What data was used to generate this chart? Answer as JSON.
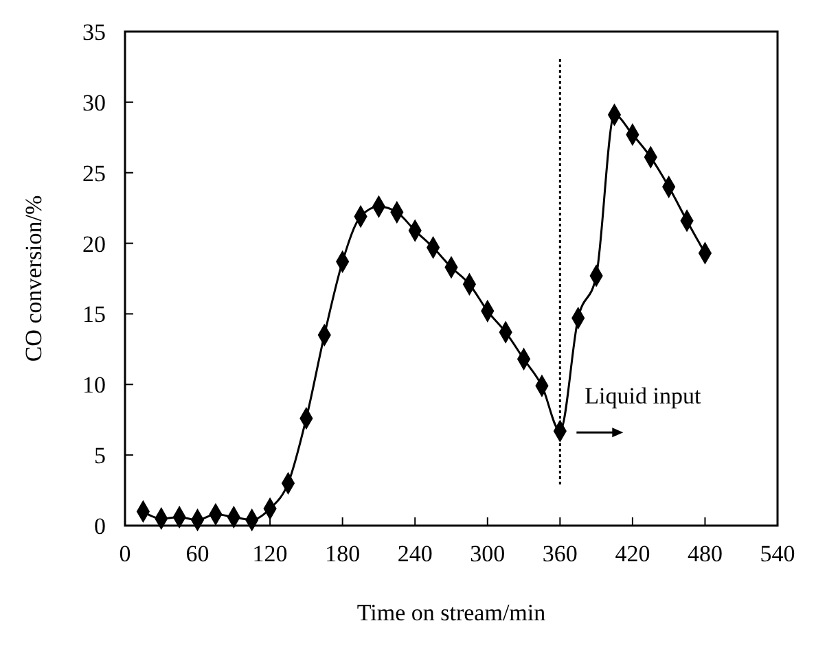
{
  "chart_data": {
    "type": "line",
    "xlabel": "Time on stream/min",
    "ylabel": "CO conversion/%",
    "x": [
      15,
      30,
      45,
      60,
      75,
      90,
      105,
      120,
      135,
      150,
      165,
      180,
      195,
      210,
      225,
      240,
      255,
      270,
      285,
      300,
      315,
      330,
      345,
      360,
      375,
      390,
      405,
      420,
      435,
      450,
      465,
      480
    ],
    "series": [
      {
        "color": "#000000",
        "values": [
          1.0,
          0.5,
          0.6,
          0.4,
          0.8,
          0.6,
          0.4,
          1.2,
          3.0,
          7.6,
          13.5,
          18.7,
          21.9,
          22.6,
          22.2,
          20.9,
          19.7,
          18.3,
          17.1,
          15.2,
          13.7,
          11.8,
          9.9,
          6.7,
          14.7,
          17.7,
          29.1,
          27.7,
          26.1,
          24.0,
          21.6,
          19.3
        ]
      }
    ],
    "xlim": [
      0,
      540
    ],
    "xticks": [
      0,
      60,
      120,
      180,
      240,
      300,
      360,
      420,
      480,
      540
    ],
    "ylim": [
      0,
      35
    ],
    "yticks": [
      0,
      5,
      10,
      15,
      20,
      25,
      30,
      35
    ],
    "marker": "diamond",
    "line_style": "solid",
    "ref_lines": [
      {
        "axis": "x",
        "value": 360,
        "line_style": "dotted",
        "color": "#000000"
      }
    ],
    "annotations": [
      {
        "text": "Liquid input",
        "x": 360,
        "y": 6.7
      }
    ]
  }
}
